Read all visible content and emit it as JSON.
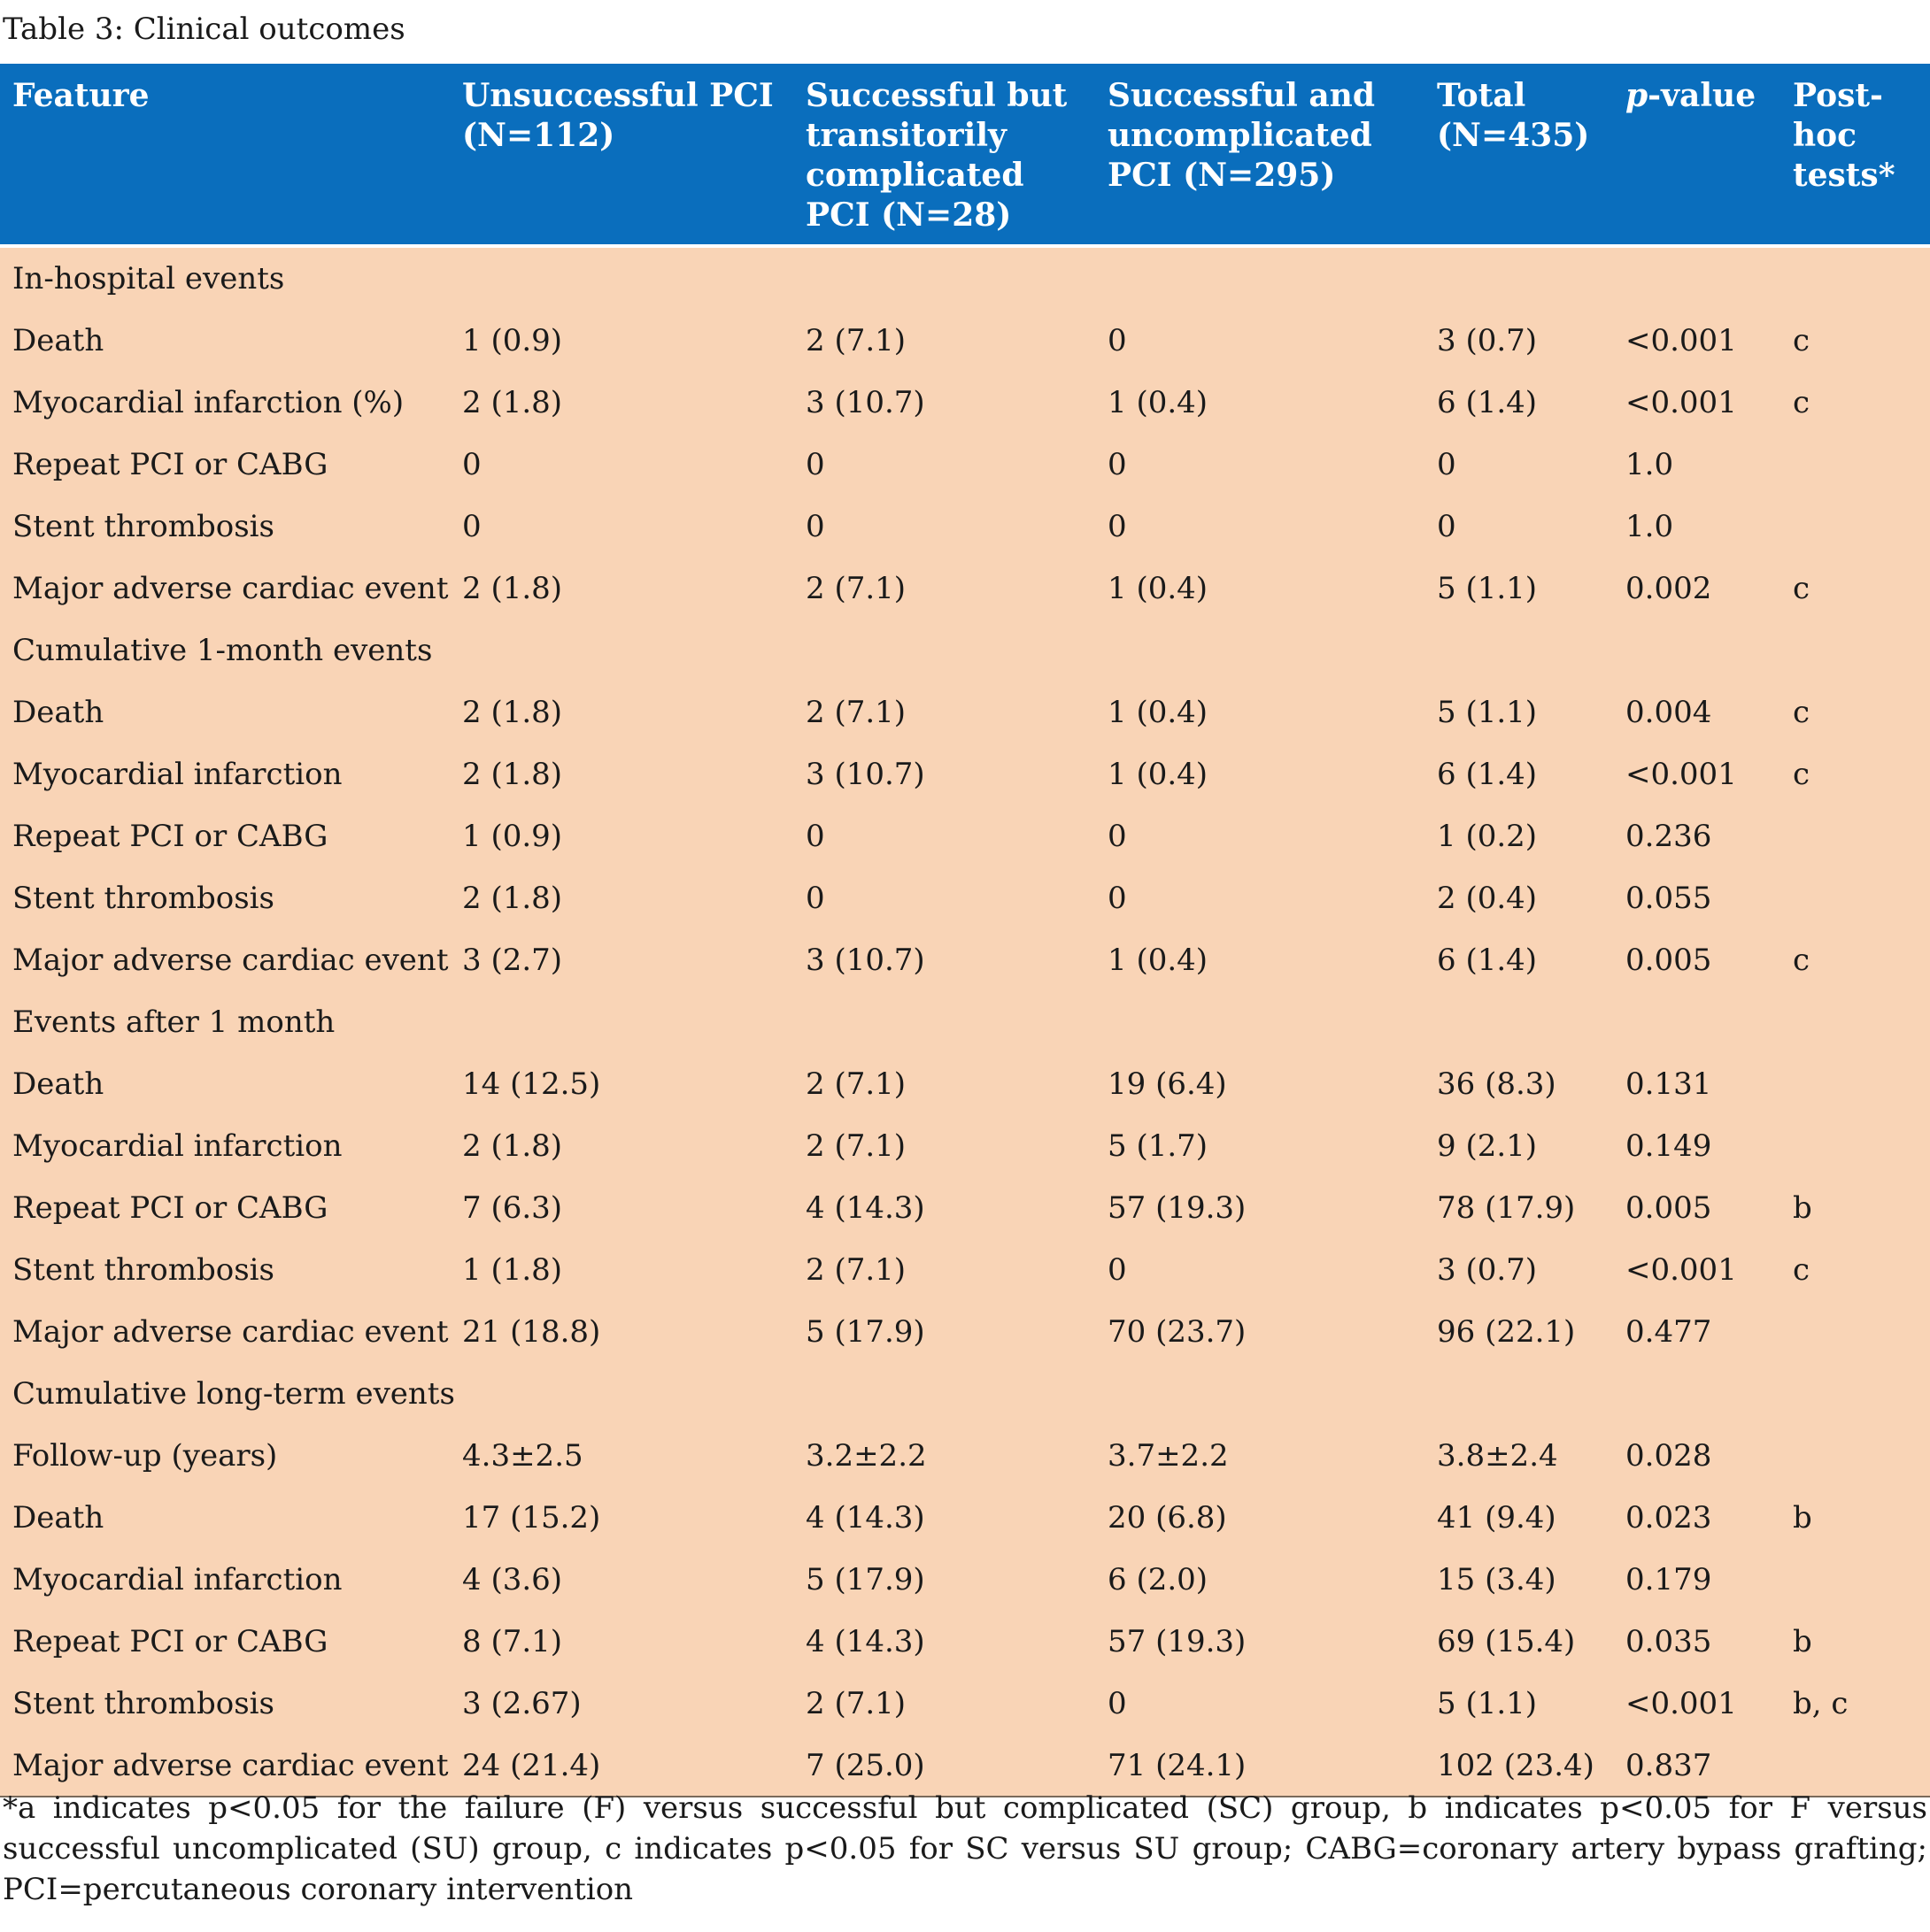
{
  "caption": "Table 3: Clinical outcomes",
  "columns": [
    {
      "label": "Feature"
    },
    {
      "label": "Unsuccessful PCI (N=112)"
    },
    {
      "label": "Successful but transitorily complicated PCI (N=28)"
    },
    {
      "label": "Successful and uncomplicated PCI (N=295)"
    },
    {
      "label": "Total (N=435)"
    },
    {
      "label_italic": "p",
      "label_rest": "-value"
    },
    {
      "label": "Post-hoc tests*"
    }
  ],
  "rows": [
    {
      "type": "section",
      "label": "In-hospital events"
    },
    {
      "type": "data",
      "cells": [
        "Death",
        "1 (0.9)",
        "2 (7.1)",
        "0",
        "3 (0.7)",
        "<0.001",
        "c"
      ]
    },
    {
      "type": "data",
      "cells": [
        "Myocardial infarction (%)",
        "2 (1.8)",
        "3 (10.7)",
        "1 (0.4)",
        "6 (1.4)",
        "<0.001",
        "c"
      ]
    },
    {
      "type": "data",
      "cells": [
        "Repeat PCI or CABG",
        "0",
        "0",
        "0",
        "0",
        "1.0",
        ""
      ]
    },
    {
      "type": "data",
      "cells": [
        "Stent thrombosis",
        "0",
        "0",
        "0",
        "0",
        "1.0",
        ""
      ]
    },
    {
      "type": "data",
      "cells": [
        "Major adverse cardiac events",
        "2 (1.8)",
        "2 (7.1)",
        "1 (0.4)",
        "5 (1.1)",
        "0.002",
        "c"
      ]
    },
    {
      "type": "section",
      "label": "Cumulative 1-month events"
    },
    {
      "type": "data",
      "cells": [
        "Death",
        "2 (1.8)",
        "2 (7.1)",
        "1 (0.4)",
        "5 (1.1)",
        "0.004",
        "c"
      ]
    },
    {
      "type": "data",
      "cells": [
        "Myocardial infarction",
        "2 (1.8)",
        "3 (10.7)",
        "1 (0.4)",
        "6 (1.4)",
        "<0.001",
        "c"
      ]
    },
    {
      "type": "data",
      "cells": [
        "Repeat PCI or CABG",
        "1 (0.9)",
        "0",
        "0",
        "1 (0.2)",
        "0.236",
        ""
      ]
    },
    {
      "type": "data",
      "cells": [
        "Stent thrombosis",
        "2 (1.8)",
        "0",
        "0",
        "2 (0.4)",
        "0.055",
        ""
      ]
    },
    {
      "type": "data",
      "cells": [
        "Major adverse cardiac events",
        "3 (2.7)",
        "3 (10.7)",
        "1 (0.4)",
        "6 (1.4)",
        "0.005",
        "c"
      ]
    },
    {
      "type": "section",
      "label": "Events after 1 month"
    },
    {
      "type": "data",
      "cells": [
        "Death",
        "14 (12.5)",
        "2 (7.1)",
        "19 (6.4)",
        "36 (8.3)",
        "0.131",
        ""
      ]
    },
    {
      "type": "data",
      "cells": [
        "Myocardial infarction",
        "2 (1.8)",
        "2 (7.1)",
        "5 (1.7)",
        "9 (2.1)",
        "0.149",
        ""
      ]
    },
    {
      "type": "data",
      "cells": [
        "Repeat PCI or CABG",
        "7 (6.3)",
        "4 (14.3)",
        "57 (19.3)",
        "78 (17.9)",
        "0.005",
        "b"
      ]
    },
    {
      "type": "data",
      "cells": [
        "Stent thrombosis",
        "1 (1.8)",
        "2 (7.1)",
        "0",
        "3 (0.7)",
        "<0.001",
        "c"
      ]
    },
    {
      "type": "data",
      "cells": [
        "Major adverse cardiac events",
        "21 (18.8)",
        "5 (17.9)",
        "70 (23.7)",
        "96 (22.1)",
        "0.477",
        ""
      ]
    },
    {
      "type": "section",
      "label": "Cumulative long-term events"
    },
    {
      "type": "data",
      "cells": [
        "Follow-up (years)",
        "4.3±2.5",
        "3.2±2.2",
        "3.7±2.2",
        "3.8±2.4",
        "0.028",
        ""
      ]
    },
    {
      "type": "data",
      "cells": [
        "Death",
        "17 (15.2)",
        "4 (14.3)",
        "20 (6.8)",
        "41 (9.4)",
        "0.023",
        "b"
      ]
    },
    {
      "type": "data",
      "cells": [
        "Myocardial infarction",
        "4 (3.6)",
        "5 (17.9)",
        "6 (2.0)",
        "15 (3.4)",
        "0.179",
        ""
      ]
    },
    {
      "type": "data",
      "cells": [
        "Repeat PCI or CABG",
        "8 (7.1)",
        "4 (14.3)",
        "57 (19.3)",
        "69 (15.4)",
        "0.035",
        "b"
      ]
    },
    {
      "type": "data",
      "cells": [
        "Stent thrombosis",
        "3 (2.67)",
        "2 (7.1)",
        "0",
        "5 (1.1)",
        "<0.001",
        "b, c"
      ]
    },
    {
      "type": "data",
      "cells": [
        "Major adverse cardiac events",
        "24 (21.4)",
        "7 (25.0)",
        "71 (24.1)",
        "102 (23.4)",
        "0.837",
        ""
      ]
    }
  ],
  "footnote": "*a indicates p<0.05 for the failure (F) versus successful but complicated (SC) group, b indicates p<0.05 for F versus successful uncomplicated (SU) group, c indicates p<0.05 for SC versus SU group; CABG=coronary artery bypass grafting; PCI=percutaneous coronary intervention",
  "colors": {
    "header_bg": "#0a6ebd",
    "body_bg": "#f9d4b6",
    "header_text": "#ffffff"
  }
}
